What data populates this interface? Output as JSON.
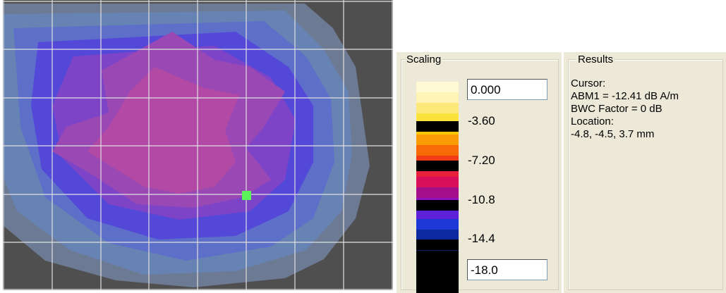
{
  "scaling": {
    "legend": "Scaling",
    "max_value": "0.000",
    "min_value": "-18.0",
    "ticks": [
      "-3.60",
      "-7.20",
      "-10.8",
      "-14.4"
    ],
    "colors": [
      "#000000",
      "#0a1f5c",
      "#0c2aa0",
      "#1c38d6",
      "#5c20d6",
      "#8f12c4",
      "#a5108a",
      "#d8105a",
      "#e8203c",
      "#f23c18",
      "#f86a08",
      "#fa9c06",
      "#fbc806",
      "#fce33c",
      "#fde97a",
      "#fff4b4",
      "#fffad4"
    ]
  },
  "results": {
    "legend": "Results",
    "lines": [
      "Cursor:",
      "ABM1 = -12.41 dB A/m",
      "BWC Factor = 0 dB",
      "Location:",
      "-4.8, -4.5, 3.7 mm"
    ]
  },
  "map": {
    "cursor_color": "#5cf25c",
    "grid_color": "#e0e0e0"
  }
}
